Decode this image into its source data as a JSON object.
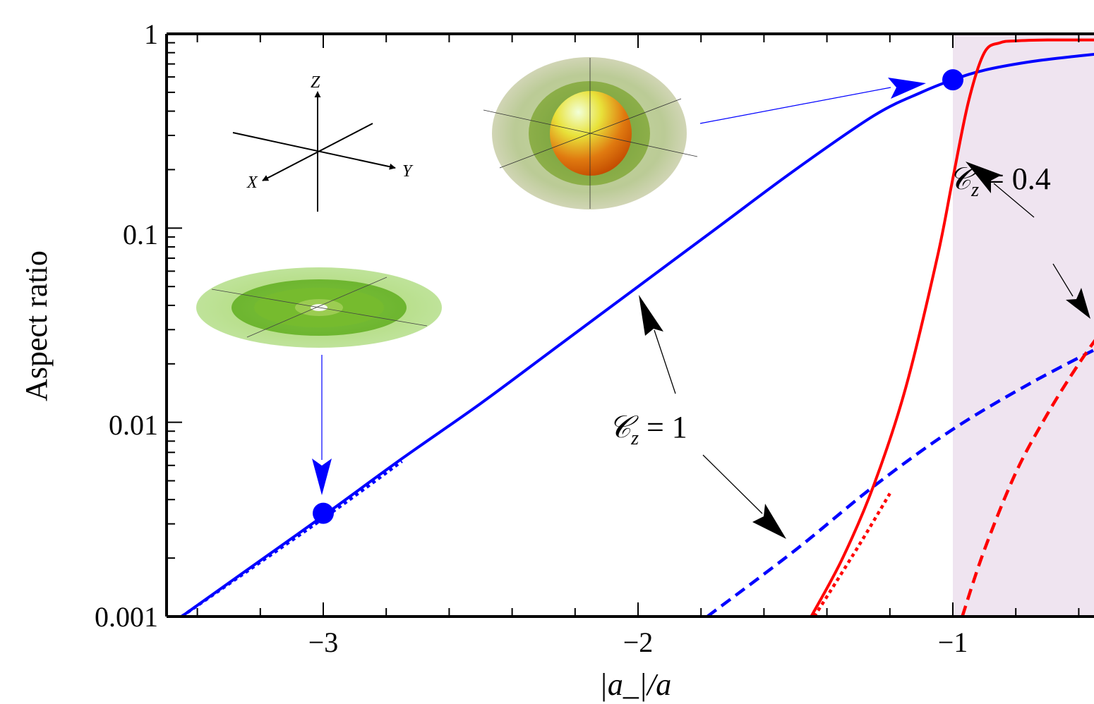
{
  "chart_data": {
    "type": "line",
    "xlabel": "|a_|/a",
    "ylabel": "Aspect ratio",
    "xlim": [
      -3.5,
      -0.5
    ],
    "ylim": [
      0.001,
      1
    ],
    "y_scale": "log",
    "grid": false,
    "xticks": [
      "−3",
      "−2",
      "−1"
    ],
    "yticks": [
      "0.001",
      "0.01",
      "0.1",
      "1"
    ],
    "shaded_region": {
      "x_from": -1,
      "x_to": -0.5,
      "color": "#efe4f0"
    },
    "series": [
      {
        "color": "#0000ff",
        "style": "solid",
        "x": [
          -3.45,
          -3.25,
          -3.0,
          -2.75,
          -2.5,
          -2.25,
          -2.0,
          -1.75,
          -1.5,
          -1.25,
          -1.1,
          -1.0,
          -0.9,
          -0.75,
          -0.6,
          -0.5
        ],
        "y": [
          0.001,
          0.0017,
          0.0033,
          0.0065,
          0.0125,
          0.025,
          0.05,
          0.1,
          0.2,
          0.38,
          0.5,
          0.58,
          0.65,
          0.72,
          0.77,
          0.8
        ]
      },
      {
        "color": "#0000ff",
        "style": "dotted",
        "x": [
          -3.45,
          -3.0,
          -2.75
        ],
        "y": [
          0.001,
          0.0032,
          0.0063
        ]
      },
      {
        "color": "#0000ff",
        "style": "dashed",
        "x": [
          -1.78,
          -1.5,
          -1.25,
          -1.0,
          -0.75,
          -0.5
        ],
        "y": [
          0.001,
          0.0022,
          0.0047,
          0.0092,
          0.016,
          0.026
        ]
      },
      {
        "color": "#ff0000",
        "style": "solid",
        "x": [
          -1.45,
          -1.35,
          -1.25,
          -1.15,
          -1.05,
          -1.0,
          -0.95,
          -0.9,
          -0.85,
          -0.8,
          -0.7,
          -0.6,
          -0.5
        ],
        "y": [
          0.001,
          0.002,
          0.0048,
          0.015,
          0.07,
          0.18,
          0.45,
          0.8,
          0.9,
          0.92,
          0.93,
          0.93,
          0.93
        ]
      },
      {
        "color": "#ff0000",
        "style": "dotted",
        "x": [
          -1.44,
          -1.3,
          -1.2
        ],
        "y": [
          0.001,
          0.0023,
          0.0043
        ]
      },
      {
        "color": "#ff0000",
        "style": "dashed",
        "x": [
          -0.97,
          -0.9,
          -0.8,
          -0.7,
          -0.6,
          -0.5
        ],
        "y": [
          0.001,
          0.0022,
          0.0055,
          0.011,
          0.02,
          0.034
        ]
      }
    ],
    "points": [
      {
        "x": -3.0,
        "y": 0.0034,
        "color": "#0000ff"
      },
      {
        "x": -1.0,
        "y": 0.58,
        "color": "#0000ff"
      }
    ],
    "annotations": [
      {
        "text": "𝒞",
        "sub": "z",
        "rest": " = 1"
      },
      {
        "text": "𝒞",
        "sub": "z",
        "rest": " = 0.4"
      }
    ],
    "inset_axes": {
      "z": "Z",
      "x": "X",
      "y": "Y"
    }
  }
}
